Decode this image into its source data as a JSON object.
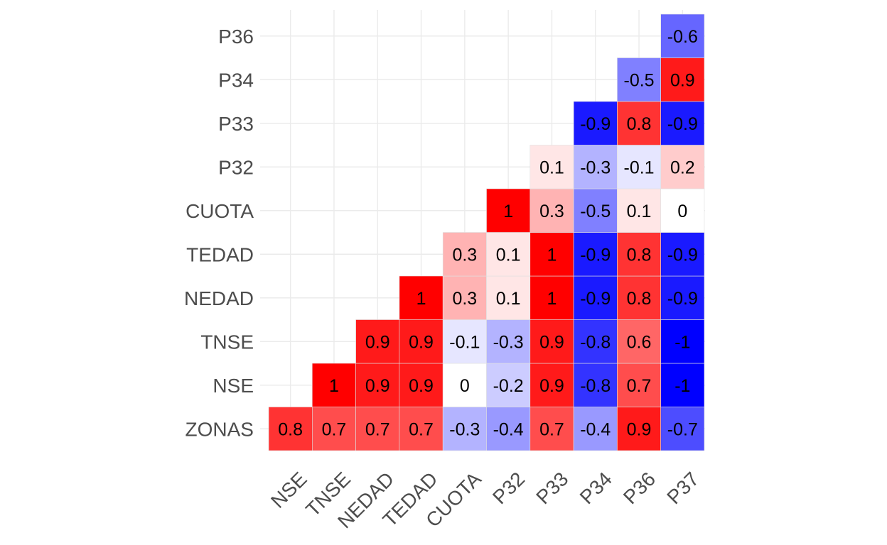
{
  "chart_data": {
    "type": "heatmap",
    "title": "",
    "xlabel": "",
    "ylabel": "",
    "x_categories": [
      "NSE",
      "TNSE",
      "NEDAD",
      "TEDAD",
      "CUOTA",
      "P32",
      "P33",
      "P34",
      "P36",
      "P37"
    ],
    "y_categories": [
      "ZONAS",
      "NSE",
      "TNSE",
      "NEDAD",
      "TEDAD",
      "CUOTA",
      "P32",
      "P33",
      "P34",
      "P36"
    ],
    "value_range": [
      -1,
      1
    ],
    "colors": {
      "low": "#0000ff",
      "mid": "#ffffff",
      "high": "#ff0000"
    },
    "grid": true,
    "legend": "none",
    "cells": [
      {
        "x": "NSE",
        "y": "ZONAS",
        "value": 0.8
      },
      {
        "x": "TNSE",
        "y": "ZONAS",
        "value": 0.7
      },
      {
        "x": "NEDAD",
        "y": "ZONAS",
        "value": 0.7
      },
      {
        "x": "TEDAD",
        "y": "ZONAS",
        "value": 0.7
      },
      {
        "x": "CUOTA",
        "y": "ZONAS",
        "value": -0.3
      },
      {
        "x": "P32",
        "y": "ZONAS",
        "value": -0.4
      },
      {
        "x": "P33",
        "y": "ZONAS",
        "value": 0.7
      },
      {
        "x": "P34",
        "y": "ZONAS",
        "value": -0.4
      },
      {
        "x": "P36",
        "y": "ZONAS",
        "value": 0.9
      },
      {
        "x": "P37",
        "y": "ZONAS",
        "value": -0.7
      },
      {
        "x": "TNSE",
        "y": "NSE",
        "value": 1
      },
      {
        "x": "NEDAD",
        "y": "NSE",
        "value": 0.9
      },
      {
        "x": "TEDAD",
        "y": "NSE",
        "value": 0.9
      },
      {
        "x": "CUOTA",
        "y": "NSE",
        "value": 0
      },
      {
        "x": "P32",
        "y": "NSE",
        "value": -0.2
      },
      {
        "x": "P33",
        "y": "NSE",
        "value": 0.9
      },
      {
        "x": "P34",
        "y": "NSE",
        "value": -0.8
      },
      {
        "x": "P36",
        "y": "NSE",
        "value": 0.7
      },
      {
        "x": "P37",
        "y": "NSE",
        "value": -1
      },
      {
        "x": "NEDAD",
        "y": "TNSE",
        "value": 0.9
      },
      {
        "x": "TEDAD",
        "y": "TNSE",
        "value": 0.9
      },
      {
        "x": "CUOTA",
        "y": "TNSE",
        "value": -0.1
      },
      {
        "x": "P32",
        "y": "TNSE",
        "value": -0.3
      },
      {
        "x": "P33",
        "y": "TNSE",
        "value": 0.9
      },
      {
        "x": "P34",
        "y": "TNSE",
        "value": -0.8
      },
      {
        "x": "P36",
        "y": "TNSE",
        "value": 0.6
      },
      {
        "x": "P37",
        "y": "TNSE",
        "value": -1
      },
      {
        "x": "TEDAD",
        "y": "NEDAD",
        "value": 1
      },
      {
        "x": "CUOTA",
        "y": "NEDAD",
        "value": 0.3
      },
      {
        "x": "P32",
        "y": "NEDAD",
        "value": 0.1
      },
      {
        "x": "P33",
        "y": "NEDAD",
        "value": 1
      },
      {
        "x": "P34",
        "y": "NEDAD",
        "value": -0.9
      },
      {
        "x": "P36",
        "y": "NEDAD",
        "value": 0.8
      },
      {
        "x": "P37",
        "y": "NEDAD",
        "value": -0.9
      },
      {
        "x": "CUOTA",
        "y": "TEDAD",
        "value": 0.3
      },
      {
        "x": "P32",
        "y": "TEDAD",
        "value": 0.1
      },
      {
        "x": "P33",
        "y": "TEDAD",
        "value": 1
      },
      {
        "x": "P34",
        "y": "TEDAD",
        "value": -0.9
      },
      {
        "x": "P36",
        "y": "TEDAD",
        "value": 0.8
      },
      {
        "x": "P37",
        "y": "TEDAD",
        "value": -0.9
      },
      {
        "x": "P32",
        "y": "CUOTA",
        "value": 1
      },
      {
        "x": "P33",
        "y": "CUOTA",
        "value": 0.3
      },
      {
        "x": "P34",
        "y": "CUOTA",
        "value": -0.5
      },
      {
        "x": "P36",
        "y": "CUOTA",
        "value": 0.1
      },
      {
        "x": "P37",
        "y": "CUOTA",
        "value": 0
      },
      {
        "x": "P33",
        "y": "P32",
        "value": 0.1
      },
      {
        "x": "P34",
        "y": "P32",
        "value": -0.3
      },
      {
        "x": "P36",
        "y": "P32",
        "value": -0.1
      },
      {
        "x": "P37",
        "y": "P32",
        "value": 0.2
      },
      {
        "x": "P34",
        "y": "P33",
        "value": -0.9
      },
      {
        "x": "P36",
        "y": "P33",
        "value": 0.8
      },
      {
        "x": "P37",
        "y": "P33",
        "value": -0.9
      },
      {
        "x": "P36",
        "y": "P34",
        "value": -0.5
      },
      {
        "x": "P37",
        "y": "P34",
        "value": 0.9
      },
      {
        "x": "P37",
        "y": "P36",
        "value": -0.6
      }
    ]
  }
}
